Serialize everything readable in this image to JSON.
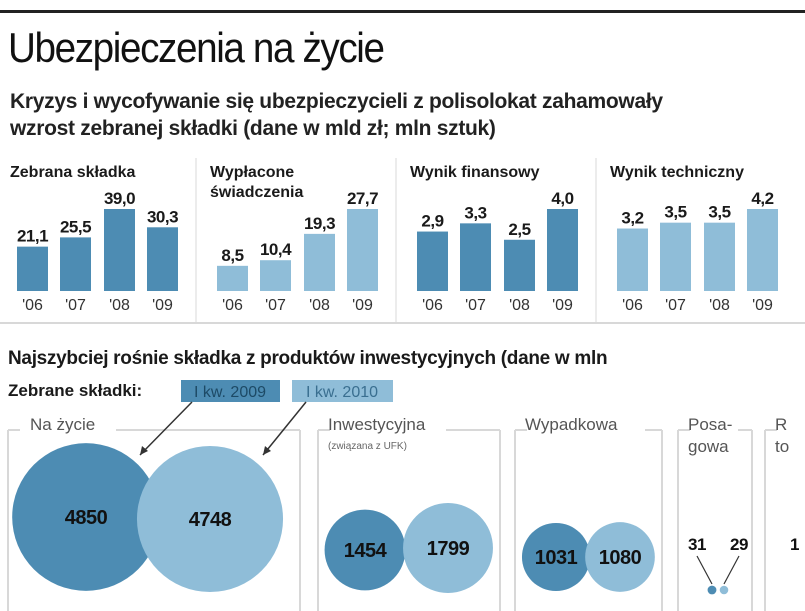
{
  "header": {
    "title": "Ubezpieczenia na życie",
    "subtitle_line1": "Kryzys i wycofywanie się ubezpieczycieli z polisolokat zahamowały",
    "subtitle_line2": "wzrost zebranej składki (dane w mld zł; mln sztuk)"
  },
  "colors": {
    "dark": "#4d8cb3",
    "light": "#8fbdd8",
    "text": "#1a1a1a",
    "frame": "#d8d8d8"
  },
  "chart_data": [
    {
      "type": "bar",
      "title": "Zebrana składka",
      "title_lines": [
        "Zebrana składka"
      ],
      "categories": [
        "'06",
        "'07",
        "'08",
        "'09"
      ],
      "values": [
        21.1,
        25.5,
        39.0,
        30.3
      ],
      "labels": [
        "21,1",
        "25,5",
        "39,0",
        "30,3"
      ],
      "shade": "dark"
    },
    {
      "type": "bar",
      "title": "Wypłacone świadczenia",
      "title_lines": [
        "Wypłacone",
        "świadczenia"
      ],
      "categories": [
        "'06",
        "'07",
        "'08",
        "'09"
      ],
      "values": [
        8.5,
        10.4,
        19.3,
        27.7
      ],
      "labels": [
        "8,5",
        "10,4",
        "19,3",
        "27,7"
      ],
      "shade": "light"
    },
    {
      "type": "bar",
      "title": "Wynik finansowy",
      "title_lines": [
        "Wynik finansowy"
      ],
      "categories": [
        "'06",
        "'07",
        "'08",
        "'09"
      ],
      "values": [
        2.9,
        3.3,
        2.5,
        4.0
      ],
      "labels": [
        "2,9",
        "3,3",
        "2,5",
        "4,0"
      ],
      "shade": "dark"
    },
    {
      "type": "bar",
      "title": "Wynik techniczny",
      "title_lines": [
        "Wynik techniczny"
      ],
      "categories": [
        "'06",
        "'07",
        "'08",
        "'09"
      ],
      "values": [
        3.2,
        3.5,
        3.5,
        4.2
      ],
      "labels": [
        "3,2",
        "3,5",
        "3,5",
        "4,2"
      ],
      "shade": "light"
    },
    {
      "type": "bubble",
      "title": "Najszybciej rośnie składka z produktów inwestycyjnych (dane w mln",
      "legend_label": "Zebrane składki:",
      "series": [
        {
          "name": "I kw. 2009",
          "shade": "dark"
        },
        {
          "name": "I kw. 2010",
          "shade": "light"
        }
      ],
      "groups": [
        {
          "name": "Na życie",
          "note": "",
          "values": [
            4850,
            4748
          ]
        },
        {
          "name": "Inwestycyjna",
          "note": "(związana z UFK)",
          "values": [
            1454,
            1799
          ]
        },
        {
          "name": "Wypadkowa",
          "note": "",
          "values": [
            1031,
            1080
          ]
        },
        {
          "name": "Posa-",
          "name2": "gowa",
          "note": "",
          "values": [
            31,
            29
          ]
        },
        {
          "name": "R",
          "name2": "to",
          "note": "",
          "values": [
            "1"
          ]
        }
      ]
    }
  ]
}
